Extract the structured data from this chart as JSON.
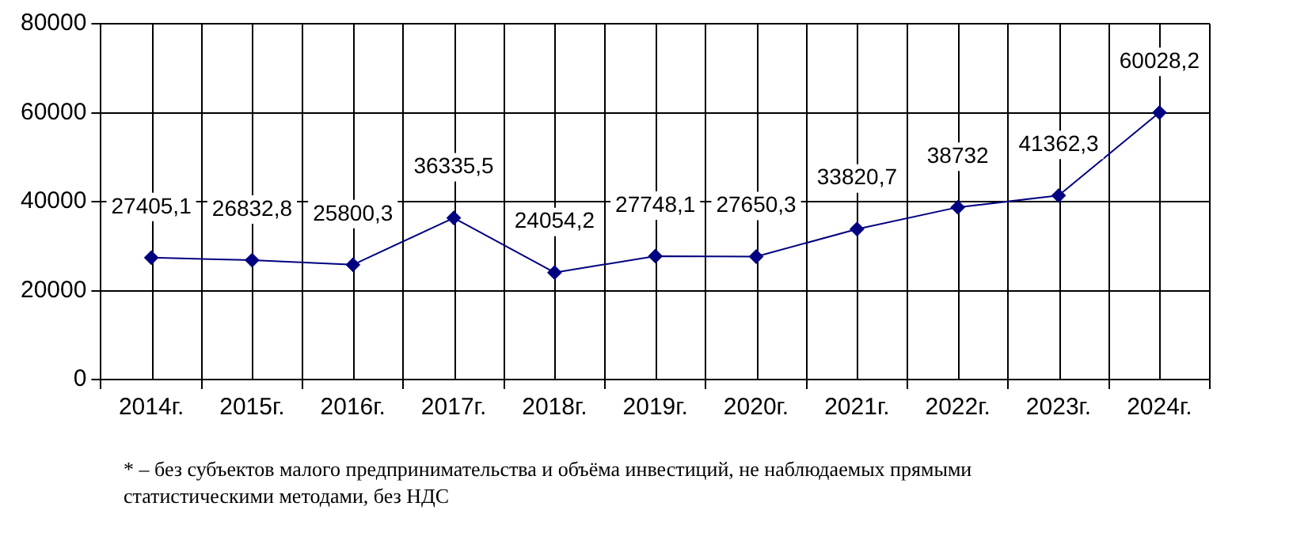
{
  "chart_data": {
    "type": "line",
    "categories": [
      "2014г.",
      "2015г.",
      "2016г.",
      "2017г.",
      "2018г.",
      "2019г.",
      "2020г.",
      "2021г.",
      "2022г.",
      "2023г.",
      "2024г."
    ],
    "series": [
      {
        "color": "#000080",
        "values": [
          27405.1,
          26832.8,
          25800.3,
          36335.5,
          24054.2,
          27748.1,
          27650.3,
          33820.7,
          38732,
          41362.3,
          60028.2
        ],
        "value_labels": [
          "27405,1",
          "26832,8",
          "25800,3",
          "36335,5",
          "24054,2",
          "27748,1",
          "27650,3",
          "33820,7",
          "38732",
          "41362,3",
          "60028,2"
        ]
      }
    ],
    "ylim": [
      0,
      80000
    ],
    "yticks": [
      0,
      20000,
      40000,
      60000,
      80000
    ],
    "grid": true,
    "legend": false,
    "marker": "diamond",
    "line_style": "solid",
    "annotations": [
      "* – без субъектов  малого предпринимательства  и объёма  инвестиций, не наблюдаемых  прямыми статистическими методами,  без НДС"
    ]
  }
}
